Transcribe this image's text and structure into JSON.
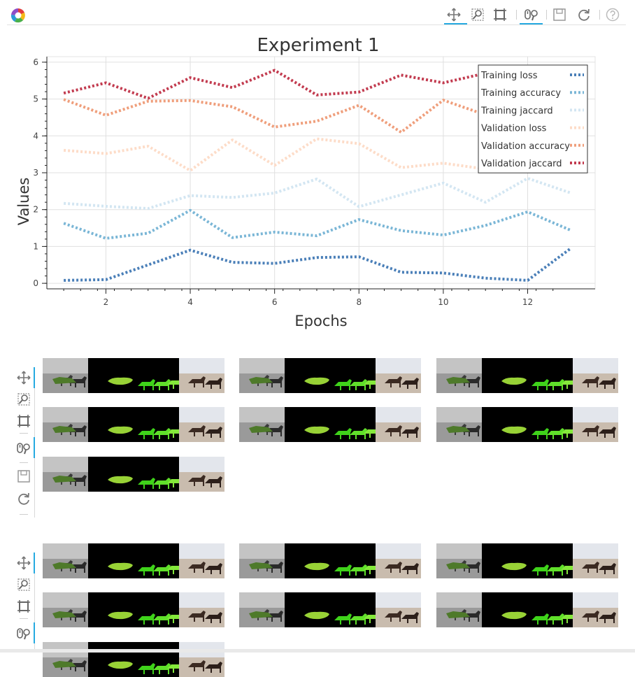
{
  "toolbar": {
    "logo": "bokeh-logo-icon",
    "tools": [
      "pan-icon",
      "box-zoom-icon",
      "zoom-select-icon",
      "wheel-zoom-icon",
      "save-icon",
      "reset-icon",
      "help-icon"
    ]
  },
  "chart_data": {
    "type": "line",
    "title": "Experiment 1",
    "xlabel": "Epochs",
    "ylabel": "Values",
    "xlim": [
      0.6,
      13.6
    ],
    "ylim": [
      -0.15,
      6.15
    ],
    "xticks": [
      2,
      4,
      6,
      8,
      10,
      12
    ],
    "yticks": [
      0,
      1,
      2,
      3,
      4,
      5,
      6
    ],
    "grid": true,
    "legend": "top-right",
    "line_style": "dotted",
    "x": [
      1,
      2,
      3,
      4,
      5,
      6,
      7,
      8,
      9,
      10,
      11,
      12,
      13
    ],
    "series": [
      {
        "name": "Training loss",
        "color": "#4a7fb8",
        "values": [
          0.08,
          0.1,
          0.5,
          0.9,
          0.57,
          0.54,
          0.7,
          0.72,
          0.3,
          0.28,
          0.14,
          0.08,
          0.93
        ]
      },
      {
        "name": "Training accuracy",
        "color": "#7ab6d6",
        "values": [
          1.63,
          1.22,
          1.36,
          1.98,
          1.24,
          1.39,
          1.29,
          1.73,
          1.43,
          1.31,
          1.57,
          1.94,
          1.45
        ]
      },
      {
        "name": "Training jaccard",
        "color": "#d3e6f2",
        "values": [
          2.17,
          2.09,
          2.03,
          2.38,
          2.33,
          2.45,
          2.83,
          2.08,
          2.4,
          2.72,
          2.2,
          2.85,
          2.46
        ]
      },
      {
        "name": "Validation loss",
        "color": "#fddcc8",
        "values": [
          3.61,
          3.52,
          3.72,
          3.06,
          3.89,
          3.2,
          3.92,
          3.79,
          3.14,
          3.26,
          3.1,
          3.3,
          3.4
        ]
      },
      {
        "name": "Validation accuracy",
        "color": "#ef9e7b",
        "values": [
          4.99,
          4.56,
          4.94,
          4.96,
          4.79,
          4.24,
          4.4,
          4.83,
          4.1,
          4.97,
          4.57,
          4.7,
          4.8
        ]
      },
      {
        "name": "Validation jaccard",
        "color": "#c23b4f",
        "values": [
          5.16,
          5.44,
          5.02,
          5.58,
          5.31,
          5.78,
          5.11,
          5.19,
          5.65,
          5.44,
          5.7,
          5.55,
          5.6
        ]
      }
    ]
  },
  "gallery": {
    "vbar_tools": [
      "pan-icon",
      "box-zoom-icon",
      "zoom-select-icon",
      "wheel-zoom-icon",
      "save-icon",
      "reset-icon"
    ]
  }
}
